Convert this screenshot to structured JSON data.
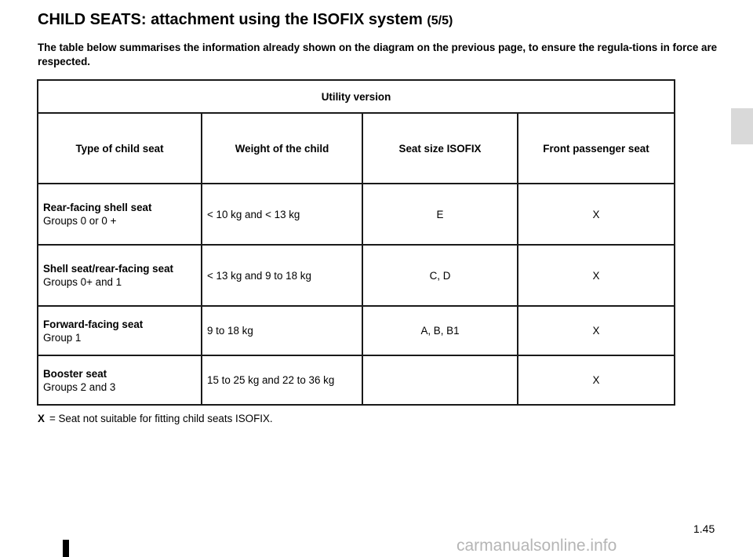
{
  "header": {
    "title": "CHILD SEATS: attachment using the ISOFIX system",
    "title_suffix": "(5/5)"
  },
  "intro": "The table below summarises the information already shown on the diagram on the previous page, to ensure the regula-tions in force are respected.",
  "table": {
    "band": "Utility version",
    "columns": [
      "Type of child seat",
      "Weight of the child",
      "Seat size ISOFIX",
      "Front passenger seat"
    ],
    "rows": [
      {
        "type": "Rear-facing shell seat",
        "groups": "Groups 0 or 0 +",
        "weight": "< 10 kg and < 13 kg",
        "size": "E",
        "front": "X"
      },
      {
        "type": "Shell seat/rear-facing seat",
        "groups": "Groups 0+ and 1",
        "weight": "< 13 kg and 9 to 18 kg",
        "size": "C, D",
        "front": "X"
      },
      {
        "type": "Forward-facing seat",
        "groups": "Group 1",
        "weight": "9 to 18 kg",
        "size": "A, B, B1",
        "front": "X"
      },
      {
        "type": "Booster seat",
        "groups": "Groups 2 and 3",
        "weight": "15 to 25 kg and 22 to 36 kg",
        "size": "",
        "front": "X"
      }
    ]
  },
  "note": {
    "symbol": "X",
    "text": "= Seat not suitable for fitting child seats ISOFIX."
  },
  "page_number": "1.45",
  "watermark": "carmanualsonline.info",
  "colors": {
    "side_tab": "#d9d9d9",
    "watermark": "#b5b5b5",
    "table_border": "#1a1a1a"
  }
}
